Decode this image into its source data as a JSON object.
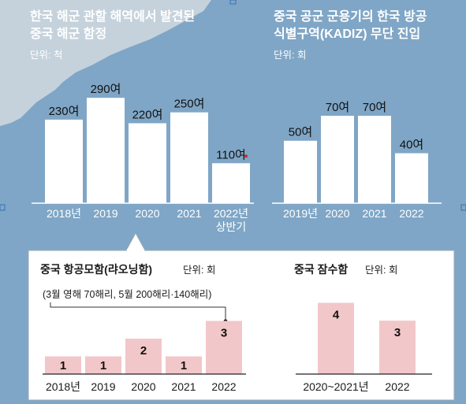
{
  "colors": {
    "sea": "#7fa6c6",
    "land": "#c5d2dc",
    "bar_white": "#ffffff",
    "bar_pink": "#f2c7c9",
    "panel": "#ffffff",
    "accent_dot": "#d9232d"
  },
  "chart_data": [
    {
      "type": "bar",
      "title": [
        "한국 해군 관할 해역에서 발견된",
        "중국 해군 함정"
      ],
      "unit_label": "단위: 척",
      "categories": [
        "2018년",
        "2019",
        "2020",
        "2021",
        "2022년"
      ],
      "category_sublabels": [
        "",
        "",
        "",
        "",
        "상반기"
      ],
      "values": [
        230,
        290,
        220,
        250,
        110
      ],
      "value_labels": [
        "230여",
        "290여",
        "220여",
        "250여",
        "110여"
      ],
      "ylim": [
        0,
        310
      ]
    },
    {
      "type": "bar",
      "title": [
        "중국 공군 군용기의 한국 방공",
        "식별구역(KADIZ) 무단 진입"
      ],
      "unit_label": "단위: 회",
      "categories": [
        "2019년",
        "2020",
        "2021",
        "2022"
      ],
      "values": [
        50,
        70,
        70,
        40
      ],
      "value_labels": [
        "50여",
        "70여",
        "70여",
        "40여"
      ],
      "ylim": [
        0,
        82
      ]
    },
    {
      "type": "bar",
      "title": "중국 항공모함(랴오닝함)",
      "unit_label": "단위: 회",
      "annotation": "(3월 영해 70해리, 5월 200해리·140해리)",
      "categories": [
        "2018년",
        "2019",
        "2020",
        "2021",
        "2022"
      ],
      "values": [
        1,
        1,
        2,
        1,
        3
      ],
      "ylim": [
        0,
        4
      ]
    },
    {
      "type": "bar",
      "title": "중국 잠수함",
      "unit_label": "단위: 회",
      "categories": [
        "2020~2021년",
        "2022"
      ],
      "values": [
        4,
        3
      ],
      "ylim": [
        0,
        4.2
      ]
    }
  ]
}
